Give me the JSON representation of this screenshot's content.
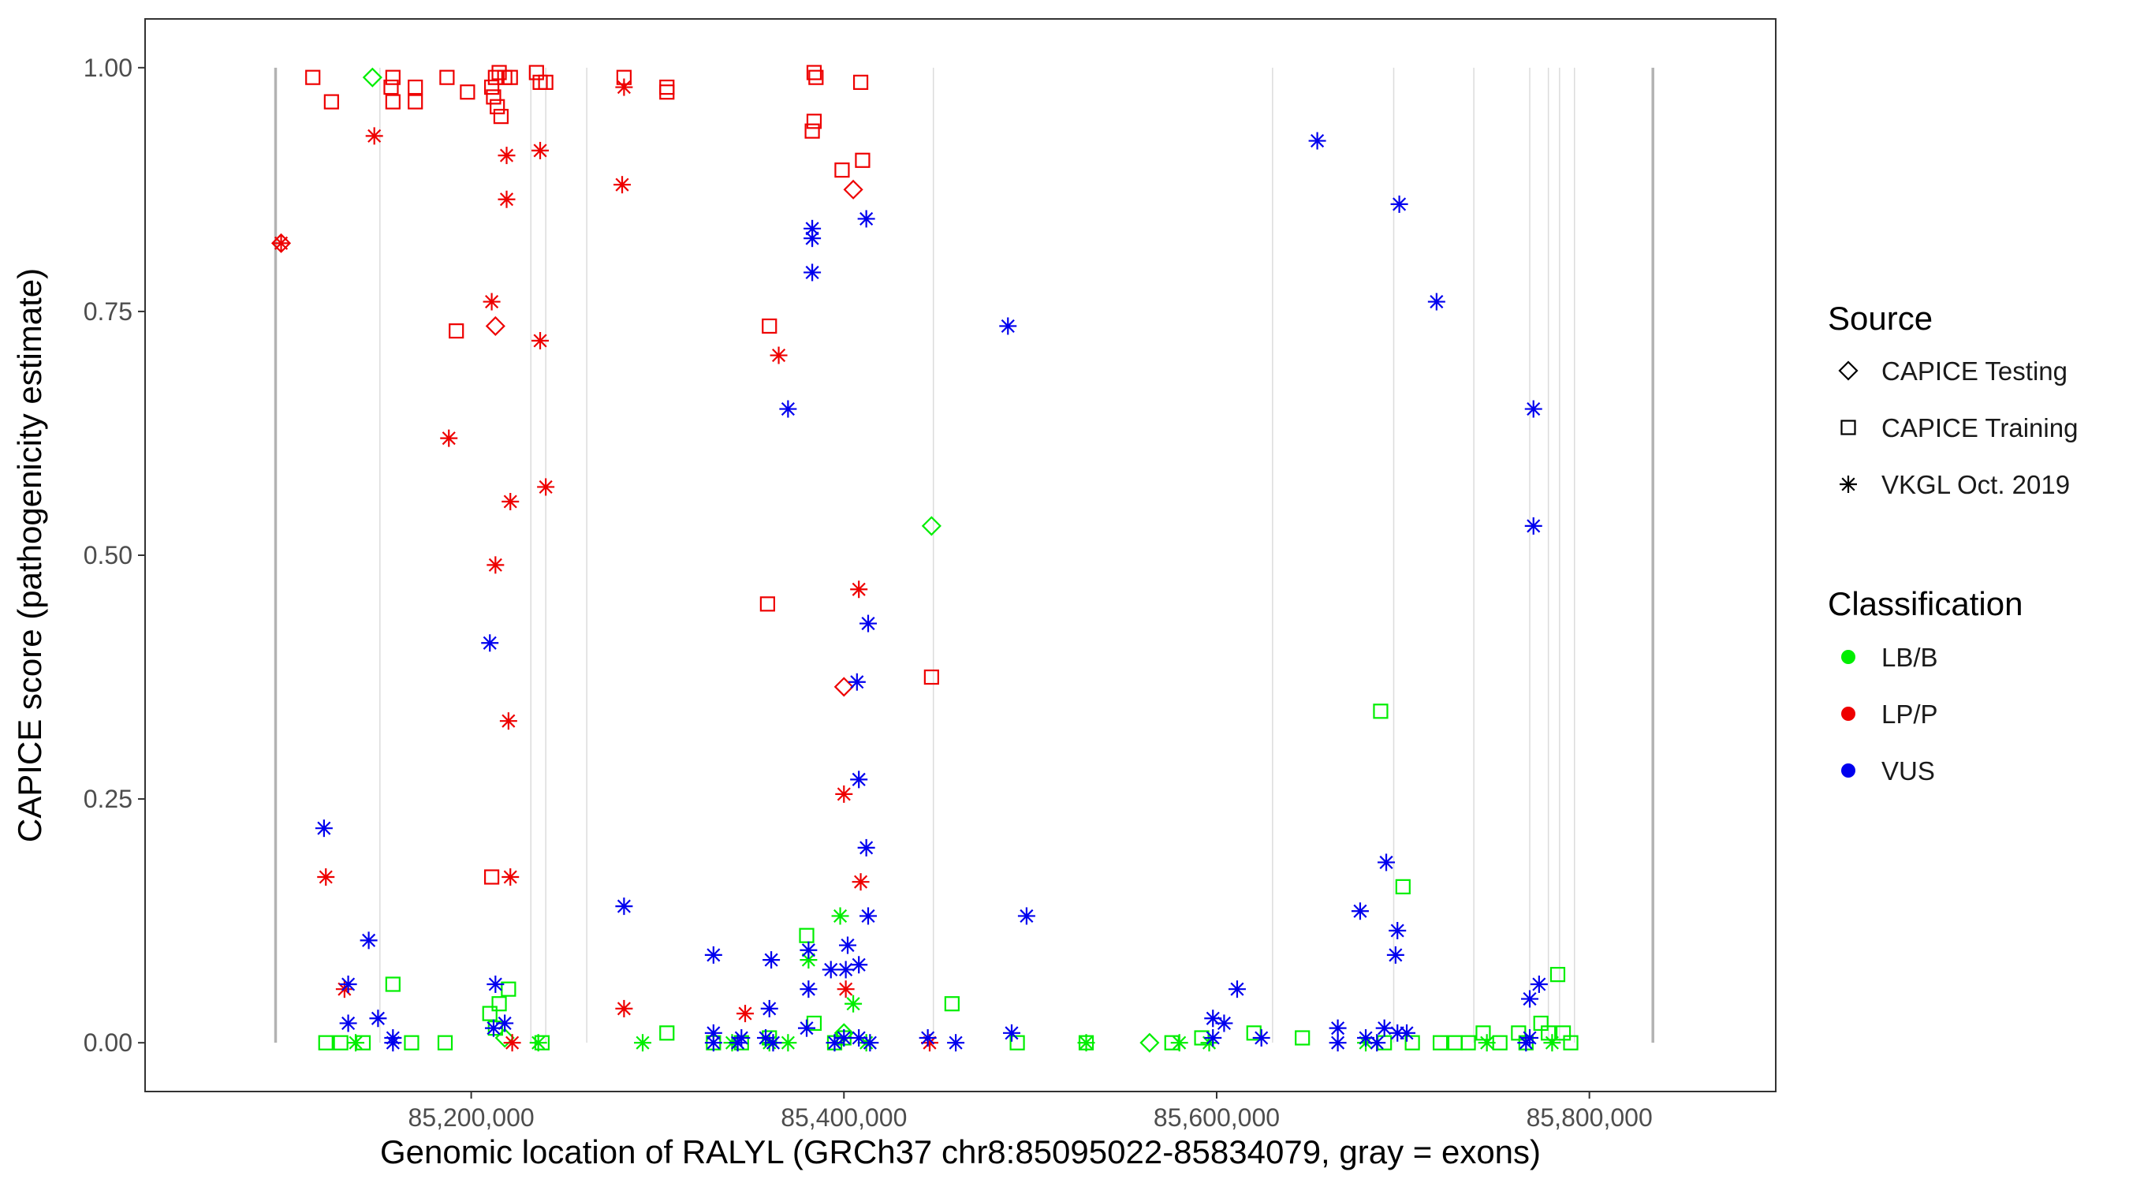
{
  "chart_data": {
    "type": "scatter",
    "title": "",
    "xlabel": "Genomic location of RALYL (GRCh37 chr8:85095022-85834079, gray = exons)",
    "ylabel": "CAPICE score (pathogenicity estimate)",
    "xlim": [
      85025000,
      85900000
    ],
    "ylim": [
      -0.05,
      1.05
    ],
    "x_ticks": [
      85200000,
      85400000,
      85600000,
      85800000
    ],
    "x_tick_labels": [
      "85,200,000",
      "85,400,000",
      "85,600,000",
      "85,800,000"
    ],
    "y_ticks": [
      0,
      0.25,
      0.5,
      0.75,
      1.0
    ],
    "y_tick_labels": [
      "0.00",
      "0.25",
      "0.50",
      "0.75",
      "1.00"
    ],
    "grid": false,
    "exons": [
      85095022,
      85151000,
      85232000,
      85240000,
      85262000,
      85448000,
      85630000,
      85695000,
      85738000,
      85768000,
      85778000,
      85784000,
      85792000,
      85834079
    ],
    "legend": {
      "placement": "right",
      "source_title": "Source",
      "source_entries": [
        {
          "name": "CAPICE Testing",
          "shape": "diamond"
        },
        {
          "name": "CAPICE Training",
          "shape": "square"
        },
        {
          "name": "VKGL Oct. 2019",
          "shape": "asterisk"
        }
      ],
      "class_title": "Classification",
      "class_entries": [
        {
          "name": "LB/B",
          "color": "#00ee00"
        },
        {
          "name": "LP/P",
          "color": "#ee0000"
        },
        {
          "name": "VUS",
          "color": "#0000ee"
        }
      ]
    },
    "series": [
      {
        "source": "CAPICE Testing",
        "classification": "LB/B",
        "points": [
          [
            85147000,
            0.99
          ],
          [
            85218000,
            0.005
          ],
          [
            85447000,
            0.53
          ],
          [
            85564000,
            0.0
          ],
          [
            85400000,
            0.01
          ]
        ]
      },
      {
        "source": "CAPICE Testing",
        "classification": "LP/P",
        "points": [
          [
            85213000,
            0.735
          ],
          [
            85405000,
            0.875
          ],
          [
            85400000,
            0.365
          ],
          [
            85098000,
            0.82
          ]
        ]
      },
      {
        "source": "CAPICE Training",
        "classification": "LP/P",
        "points": [
          [
            85115000,
            0.99
          ],
          [
            85125000,
            0.965
          ],
          [
            85157000,
            0.98
          ],
          [
            85158000,
            0.99
          ],
          [
            85170000,
            0.98
          ],
          [
            85170000,
            0.965
          ],
          [
            85158000,
            0.965
          ],
          [
            85187000,
            0.99
          ],
          [
            85198000,
            0.975
          ],
          [
            85211000,
            0.98
          ],
          [
            85213000,
            0.99
          ],
          [
            85215000,
            0.995
          ],
          [
            85212000,
            0.97
          ],
          [
            85214000,
            0.96
          ],
          [
            85216000,
            0.95
          ],
          [
            85218000,
            0.99
          ],
          [
            85221000,
            0.99
          ],
          [
            85235000,
            0.995
          ],
          [
            85237000,
            0.985
          ],
          [
            85240000,
            0.985
          ],
          [
            85282000,
            0.99
          ],
          [
            85305000,
            0.975
          ],
          [
            85305000,
            0.98
          ],
          [
            85384000,
            0.995
          ],
          [
            85385000,
            0.99
          ],
          [
            85384000,
            0.945
          ],
          [
            85383000,
            0.935
          ],
          [
            85409000,
            0.985
          ],
          [
            85410000,
            0.905
          ],
          [
            85399000,
            0.895
          ],
          [
            85192000,
            0.73
          ],
          [
            85360000,
            0.735
          ],
          [
            85359000,
            0.45
          ],
          [
            85447000,
            0.375
          ],
          [
            85211000,
            0.17
          ]
        ]
      },
      {
        "source": "CAPICE Training",
        "classification": "LB/B",
        "points": [
          [
            85122000,
            0.0
          ],
          [
            85130000,
            0.0
          ],
          [
            85142000,
            0.0
          ],
          [
            85158000,
            0.06
          ],
          [
            85168000,
            0.0
          ],
          [
            85186000,
            0.0
          ],
          [
            85210000,
            0.03
          ],
          [
            85213000,
            0.015
          ],
          [
            85215000,
            0.04
          ],
          [
            85220000,
            0.055
          ],
          [
            85238000,
            0.0
          ],
          [
            85305000,
            0.01
          ],
          [
            85330000,
            0.0
          ],
          [
            85345000,
            0.0
          ],
          [
            85360000,
            0.005
          ],
          [
            85380000,
            0.11
          ],
          [
            85384000,
            0.02
          ],
          [
            85395000,
            0.0
          ],
          [
            85400000,
            0.005
          ],
          [
            85458000,
            0.04
          ],
          [
            85493000,
            0.0
          ],
          [
            85530000,
            0.0
          ],
          [
            85576000,
            0.0
          ],
          [
            85592000,
            0.005
          ],
          [
            85620000,
            0.01
          ],
          [
            85646000,
            0.005
          ],
          [
            85688000,
            0.34
          ],
          [
            85700000,
            0.16
          ],
          [
            85690000,
            0.0
          ],
          [
            85705000,
            0.0
          ],
          [
            85720000,
            0.0
          ],
          [
            85728000,
            0.0
          ],
          [
            85735000,
            0.0
          ],
          [
            85743000,
            0.01
          ],
          [
            85752000,
            0.0
          ],
          [
            85762000,
            0.01
          ],
          [
            85766000,
            0.0
          ],
          [
            85774000,
            0.02
          ],
          [
            85778000,
            0.01
          ],
          [
            85783000,
            0.07
          ],
          [
            85786000,
            0.01
          ],
          [
            85790000,
            0.0
          ]
        ]
      },
      {
        "source": "VKGL Oct. 2019",
        "classification": "LP/P",
        "points": [
          [
            85098000,
            0.82
          ],
          [
            85148000,
            0.93
          ],
          [
            85282000,
            0.98
          ],
          [
            85281000,
            0.88
          ],
          [
            85219000,
            0.91
          ],
          [
            85237000,
            0.915
          ],
          [
            85219000,
            0.865
          ],
          [
            85211000,
            0.76
          ],
          [
            85237000,
            0.72
          ],
          [
            85365000,
            0.705
          ],
          [
            85188000,
            0.62
          ],
          [
            85240000,
            0.57
          ],
          [
            85221000,
            0.555
          ],
          [
            85213000,
            0.49
          ],
          [
            85408000,
            0.465
          ],
          [
            85220000,
            0.33
          ],
          [
            85400000,
            0.255
          ],
          [
            85409000,
            0.165
          ],
          [
            85221000,
            0.17
          ],
          [
            85122000,
            0.17
          ],
          [
            85132000,
            0.055
          ],
          [
            85282000,
            0.035
          ],
          [
            85347000,
            0.03
          ],
          [
            85401000,
            0.055
          ],
          [
            85222000,
            0.0
          ],
          [
            85446000,
            0.0
          ]
        ]
      },
      {
        "source": "VKGL Oct. 2019",
        "classification": "LB/B",
        "points": [
          [
            85292000,
            0.0
          ],
          [
            85340000,
            0.0
          ],
          [
            85360000,
            0.0
          ],
          [
            85370000,
            0.0
          ],
          [
            85381000,
            0.085
          ],
          [
            85398000,
            0.13
          ],
          [
            85405000,
            0.04
          ],
          [
            85412000,
            0.0
          ],
          [
            85530000,
            0.0
          ],
          [
            85596000,
            0.0
          ],
          [
            85680000,
            0.0
          ],
          [
            85745000,
            0.0
          ],
          [
            85780000,
            0.0
          ],
          [
            85138000,
            0.0
          ],
          [
            85236000,
            0.0
          ],
          [
            85580000,
            0.0
          ]
        ]
      },
      {
        "source": "VKGL Oct. 2019",
        "classification": "VUS",
        "points": [
          [
            85654000,
            0.925
          ],
          [
            85698000,
            0.86
          ],
          [
            85718000,
            0.76
          ],
          [
            85488000,
            0.735
          ],
          [
            85770000,
            0.65
          ],
          [
            85770000,
            0.53
          ],
          [
            85412000,
            0.845
          ],
          [
            85383000,
            0.835
          ],
          [
            85383000,
            0.825
          ],
          [
            85383000,
            0.79
          ],
          [
            85370000,
            0.65
          ],
          [
            85413000,
            0.43
          ],
          [
            85210000,
            0.41
          ],
          [
            85407000,
            0.37
          ],
          [
            85408000,
            0.27
          ],
          [
            85121000,
            0.22
          ],
          [
            85412000,
            0.2
          ],
          [
            85691000,
            0.185
          ],
          [
            85282000,
            0.14
          ],
          [
            85677000,
            0.135
          ],
          [
            85413000,
            0.13
          ],
          [
            85498000,
            0.13
          ],
          [
            85697000,
            0.115
          ],
          [
            85145000,
            0.105
          ],
          [
            85330000,
            0.09
          ],
          [
            85361000,
            0.085
          ],
          [
            85402000,
            0.1
          ],
          [
            85381000,
            0.095
          ],
          [
            85696000,
            0.09
          ],
          [
            85408000,
            0.08
          ],
          [
            85393000,
            0.075
          ],
          [
            85401000,
            0.075
          ],
          [
            85213000,
            0.06
          ],
          [
            85134000,
            0.06
          ],
          [
            85773000,
            0.06
          ],
          [
            85611000,
            0.055
          ],
          [
            85381000,
            0.055
          ],
          [
            85768000,
            0.045
          ],
          [
            85360000,
            0.035
          ],
          [
            85598000,
            0.025
          ],
          [
            85134000,
            0.02
          ],
          [
            85150000,
            0.025
          ],
          [
            85218000,
            0.02
          ],
          [
            85604000,
            0.02
          ],
          [
            85212000,
            0.015
          ],
          [
            85380000,
            0.015
          ],
          [
            85490000,
            0.01
          ],
          [
            85665000,
            0.015
          ],
          [
            85690000,
            0.015
          ],
          [
            85697000,
            0.01
          ],
          [
            85702000,
            0.01
          ],
          [
            85680000,
            0.005
          ],
          [
            85330000,
            0.01
          ],
          [
            85345000,
            0.005
          ],
          [
            85358000,
            0.005
          ],
          [
            85400000,
            0.005
          ],
          [
            85408000,
            0.005
          ],
          [
            85445000,
            0.005
          ],
          [
            85598000,
            0.005
          ],
          [
            85624000,
            0.005
          ],
          [
            85158000,
            0.005
          ],
          [
            85768000,
            0.005
          ],
          [
            85330000,
            0.0
          ],
          [
            85343000,
            0.0
          ],
          [
            85362000,
            0.0
          ],
          [
            85395000,
            0.0
          ],
          [
            85414000,
            0.0
          ],
          [
            85460000,
            0.0
          ],
          [
            85665000,
            0.0
          ],
          [
            85686000,
            0.0
          ],
          [
            85766000,
            0.0
          ],
          [
            85158000,
            0.0
          ]
        ]
      }
    ]
  }
}
